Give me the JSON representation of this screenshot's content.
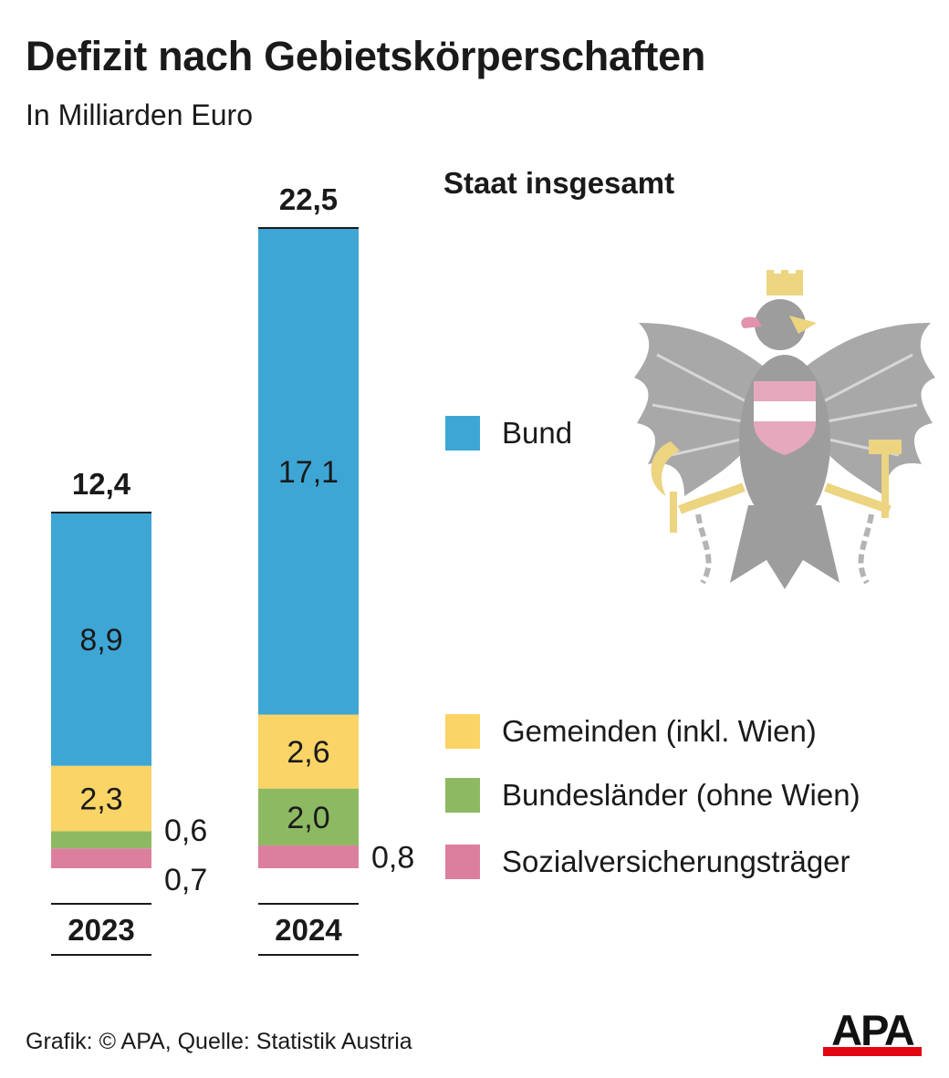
{
  "title": "Defizit nach Gebietskörperschaften",
  "subtitle": "In Milliarden Euro",
  "legend_title": "Staat insgesamt",
  "source": "Grafik: © APA, Quelle: Statistik Austria",
  "logo_text": "APA",
  "colors": {
    "Bund": "#3ea6d5",
    "Gemeinden": "#fad466",
    "Bundeslaender": "#8db963",
    "Sozialversicherung": "#dc7f9f",
    "logo_red": "#e30613"
  },
  "chart_data": {
    "type": "bar",
    "stacked": true,
    "title": "Defizit nach Gebietskörperschaften",
    "subtitle": "In Milliarden Euro",
    "categories": [
      "2023",
      "2024"
    ],
    "totals": [
      "12,4",
      "22,5"
    ],
    "series": [
      {
        "name": "Sozialversicherungsträger",
        "values": [
          0.7,
          0.8
        ],
        "labels": [
          "0,7",
          "0,8"
        ]
      },
      {
        "name": "Bundesländer (ohne Wien)",
        "values": [
          0.6,
          2.0
        ],
        "labels": [
          "0,6",
          "2,0"
        ]
      },
      {
        "name": "Gemeinden (inkl. Wien)",
        "values": [
          2.3,
          2.6
        ],
        "labels": [
          "2,3",
          "2,6"
        ]
      },
      {
        "name": "Bund",
        "values": [
          8.9,
          17.1
        ],
        "labels": [
          "8,9",
          "17,1"
        ]
      }
    ],
    "legend_order": [
      "Bund",
      "Gemeinden (inkl. Wien)",
      "Bundesländer (ohne Wien)",
      "Sozialversicherungsträger"
    ],
    "legend_position": "right",
    "grid": false
  }
}
